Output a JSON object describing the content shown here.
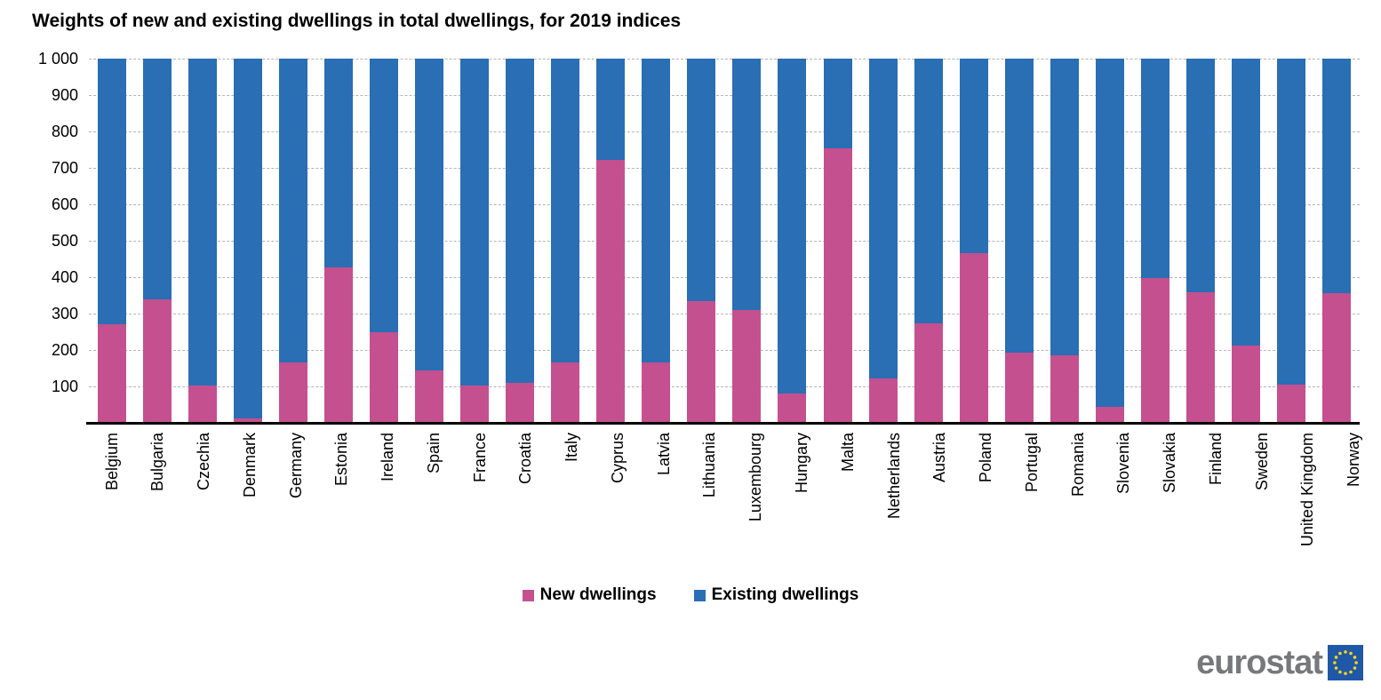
{
  "chart_data": {
    "type": "bar",
    "stacked": true,
    "title": "Weights of new and existing dwellings in total dwellings, for 2019 indices",
    "categories": [
      "Belgium",
      "Bulgaria",
      "Czechia",
      "Denmark",
      "Germany",
      "Estonia",
      "Ireland",
      "Spain",
      "France",
      "Croatia",
      "Italy",
      "Cyprus",
      "Latvia",
      "Lithuania",
      "Luxembourg",
      "Hungary",
      "Malta",
      "Netherlands",
      "Austria",
      "Poland",
      "Portugal",
      "Romania",
      "Slovenia",
      "Slovakia",
      "Finland",
      "Sweden",
      "United Kingdom",
      "Norway"
    ],
    "series": [
      {
        "name": "New dwellings",
        "color": "#C5508F",
        "values": [
          270,
          338,
          103,
          12,
          167,
          427,
          248,
          143,
          103,
          110,
          166,
          722,
          167,
          334,
          309,
          81,
          753,
          122,
          272,
          465,
          192,
          185,
          43,
          397,
          358,
          212,
          104,
          355
        ]
      },
      {
        "name": "Existing dwellings",
        "color": "#2A6EB3",
        "values": [
          730,
          662,
          897,
          988,
          833,
          573,
          752,
          857,
          897,
          890,
          834,
          278,
          833,
          666,
          691,
          919,
          247,
          878,
          728,
          535,
          808,
          815,
          957,
          603,
          642,
          788,
          896,
          645
        ]
      }
    ],
    "xlabel": "",
    "ylabel": "",
    "ylim": [
      0,
      1000
    ],
    "yticks": [
      "1 000",
      "900",
      "800",
      "700",
      "600",
      "500",
      "400",
      "300",
      "200",
      "100"
    ],
    "grid": "horizontal-dashed",
    "legend_position": "bottom-center"
  },
  "legend": {
    "items": [
      {
        "label": "New dwellings",
        "color": "#C5508F"
      },
      {
        "label": "Existing dwellings",
        "color": "#2A6EB3"
      }
    ]
  },
  "branding": {
    "logo_text": "eurostat"
  }
}
